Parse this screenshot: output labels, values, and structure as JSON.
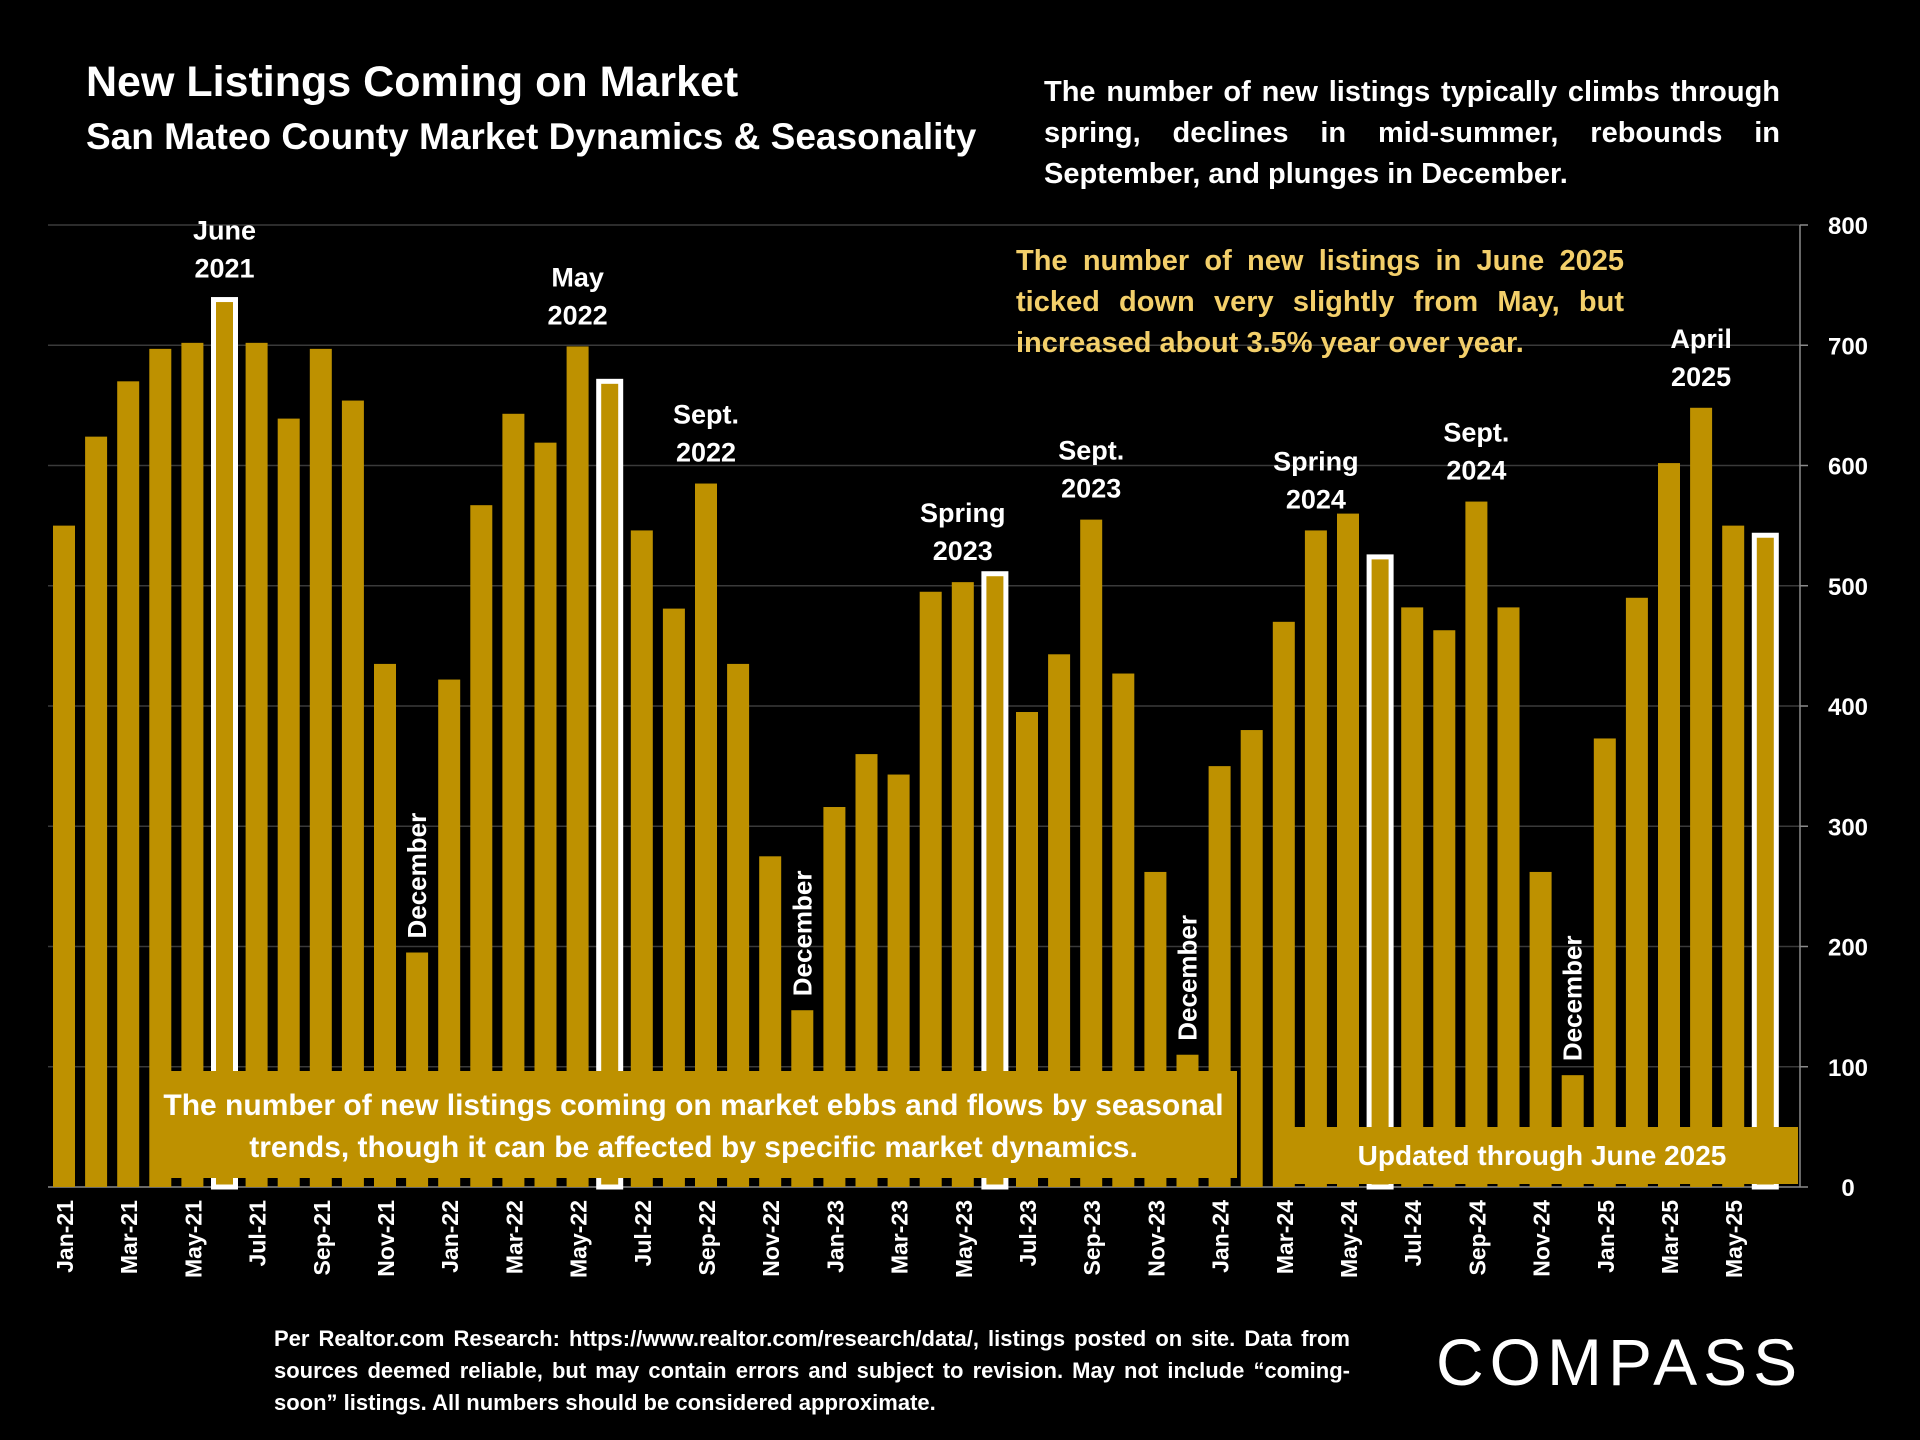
{
  "header": {
    "title": "New Listings Coming on Market",
    "subtitle": "San Mateo County Market Dynamics & Seasonality"
  },
  "notes": {
    "top_right": "The number of new listings typically climbs through spring, declines in mid-summer, rebounds in September, and plunges in December.",
    "gold": "The number of new listings in June 2025 ticked down very slightly from May, but increased about 3.5% year over year.",
    "bottom_box": "The number of new listings coming on market ebbs and flows by seasonal trends, though it can be affected by specific market dynamics.",
    "updated_box": "Updated through June 2025"
  },
  "footer": {
    "source": "Per Realtor.com Research:  https://www.realtor.com/research/data/, listings posted on site. Data from sources deemed reliable, but may contain errors and subject to revision. May not include “coming-soon” listings. All numbers should be considered approximate."
  },
  "logo": {
    "text": "COMPASS"
  },
  "colors": {
    "bar": "#be9100",
    "highlight_fill": "#be9100",
    "highlight_stroke": "#ffffff",
    "background": "#000000",
    "gold_text": "#f3cf6a"
  },
  "chart_data": {
    "type": "bar",
    "categories": [
      "Jan-21",
      "Feb-21",
      "Mar-21",
      "Apr-21",
      "May-21",
      "Jun-21",
      "Jul-21",
      "Aug-21",
      "Sep-21",
      "Oct-21",
      "Nov-21",
      "Dec-21",
      "Jan-22",
      "Feb-22",
      "Mar-22",
      "Apr-22",
      "May-22",
      "Jun-22",
      "Jul-22",
      "Aug-22",
      "Sep-22",
      "Oct-22",
      "Nov-22",
      "Dec-22",
      "Jan-23",
      "Feb-23",
      "Mar-23",
      "Apr-23",
      "May-23",
      "Jun-23",
      "Jul-23",
      "Aug-23",
      "Sep-23",
      "Oct-23",
      "Nov-23",
      "Dec-23",
      "Jan-24",
      "Feb-24",
      "Mar-24",
      "Apr-24",
      "May-24",
      "Jun-24",
      "Jul-24",
      "Aug-24",
      "Sep-24",
      "Oct-24",
      "Nov-24",
      "Dec-24",
      "Jan-25",
      "Feb-25",
      "Mar-25",
      "Apr-25",
      "May-25",
      "Jun-25"
    ],
    "values": [
      550,
      624,
      670,
      697,
      702,
      738,
      702,
      639,
      697,
      654,
      435,
      195,
      422,
      567,
      643,
      619,
      699,
      670,
      546,
      481,
      585,
      435,
      275,
      147,
      316,
      360,
      343,
      495,
      503,
      510,
      395,
      443,
      555,
      427,
      262,
      110,
      350,
      380,
      470,
      546,
      560,
      524,
      482,
      463,
      570,
      482,
      262,
      93,
      373,
      490,
      602,
      648,
      550,
      542
    ],
    "highlighted": [
      "Jun-21",
      "Jun-22",
      "Jun-23",
      "Jun-24",
      "Jun-25"
    ],
    "x_tick_labels": [
      "Jan-21",
      "Mar-21",
      "May-21",
      "Jul-21",
      "Sep-21",
      "Nov-21",
      "Jan-22",
      "Mar-22",
      "May-22",
      "Jul-22",
      "Sep-22",
      "Nov-22",
      "Jan-23",
      "Mar-23",
      "May-23",
      "Jul-23",
      "Sep-23",
      "Nov-23",
      "Jan-24",
      "Mar-24",
      "May-24",
      "Jul-24",
      "Sep-24",
      "Nov-24",
      "Jan-25",
      "Mar-25",
      "May-25"
    ],
    "y_ticks": [
      0,
      100,
      200,
      300,
      400,
      500,
      600,
      700,
      800
    ],
    "ylim": [
      0,
      800
    ],
    "y_axis_side": "right",
    "grid": true,
    "annotations": [
      {
        "text": "June 2021",
        "lines": [
          "June",
          "2021"
        ],
        "category": "Jun-21"
      },
      {
        "text": "May 2022",
        "lines": [
          "May",
          "2022"
        ],
        "category": "May-22"
      },
      {
        "text": "Sept. 2022",
        "lines": [
          "Sept.",
          "2022"
        ],
        "category": "Sep-22"
      },
      {
        "text": "Spring 2023",
        "lines": [
          "Spring",
          "2023"
        ],
        "category": "May-23"
      },
      {
        "text": "Sept. 2023",
        "lines": [
          "Sept.",
          "2023"
        ],
        "category": "Sep-23"
      },
      {
        "text": "Spring 2024",
        "lines": [
          "Spring",
          "2024"
        ],
        "category": "Apr-24"
      },
      {
        "text": "Sept. 2024",
        "lines": [
          "Sept.",
          "2024"
        ],
        "category": "Sep-24"
      },
      {
        "text": "April 2025",
        "lines": [
          "April",
          "2025"
        ],
        "category": "Apr-25"
      },
      {
        "text": "December",
        "lines": [
          "December"
        ],
        "category": "Dec-21",
        "vertical": true
      },
      {
        "text": "December",
        "lines": [
          "December"
        ],
        "category": "Dec-22",
        "vertical": true
      },
      {
        "text": "December",
        "lines": [
          "December"
        ],
        "category": "Dec-23",
        "vertical": true
      },
      {
        "text": "December",
        "lines": [
          "December"
        ],
        "category": "Dec-24",
        "vertical": true
      }
    ]
  }
}
